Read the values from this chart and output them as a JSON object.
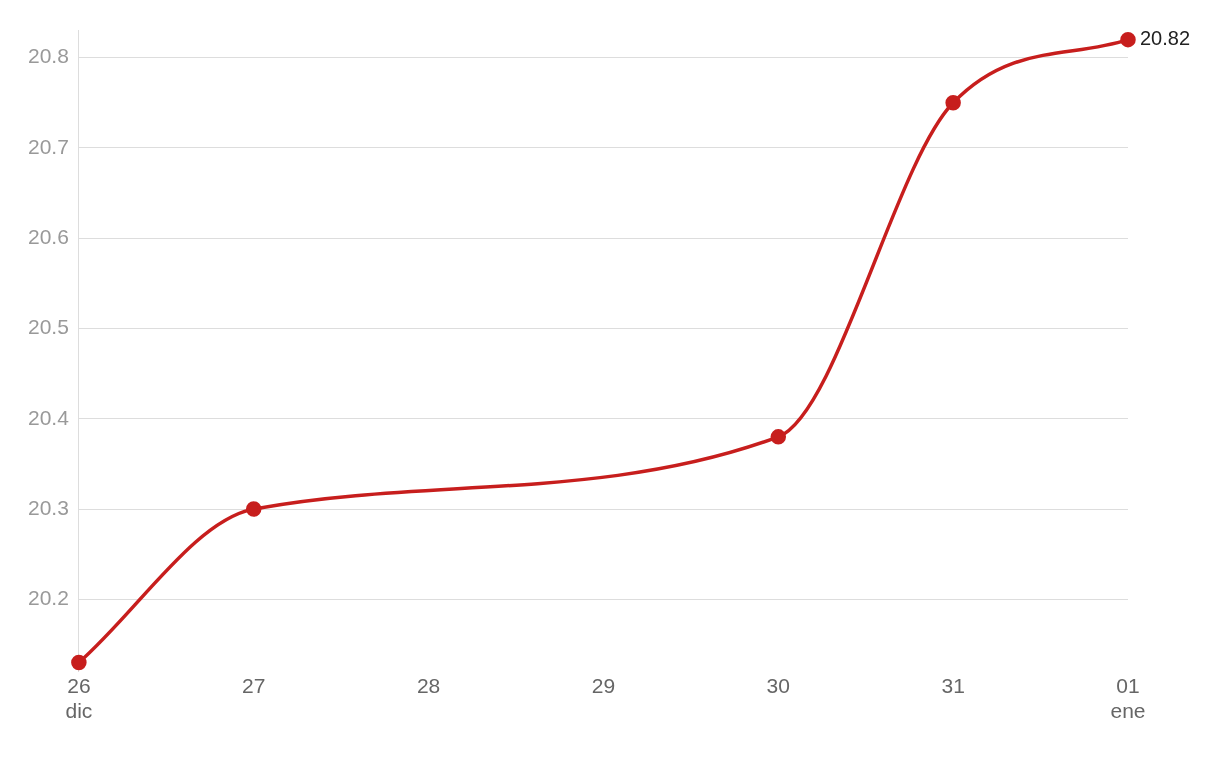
{
  "chart_data": {
    "type": "line",
    "categories": [
      "26\ndic",
      "27",
      "28",
      "29",
      "30",
      "31",
      "01\nene"
    ],
    "values": [
      20.13,
      20.3,
      null,
      null,
      20.38,
      20.75,
      20.82
    ],
    "value_labels": [
      null,
      null,
      null,
      null,
      null,
      null,
      "20.82"
    ],
    "color": "#c71e1d",
    "marker": "circle",
    "line_style": "solid",
    "grid": "y",
    "legend": false,
    "ylim": [
      20.12,
      20.83
    ],
    "yticks": [
      20.2,
      20.3,
      20.4,
      20.5,
      20.6,
      20.7,
      20.8
    ]
  }
}
